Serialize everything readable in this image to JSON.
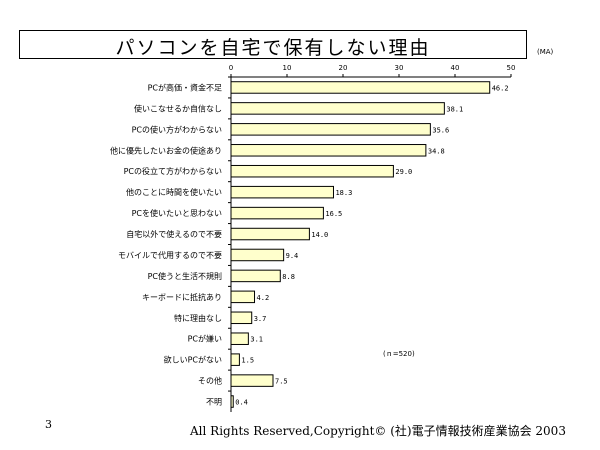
{
  "title": "パソコンを自宅で保有しない理由",
  "unit_label": "(MA)",
  "note": "(ｎ=520)",
  "page_number": "3",
  "footer": "All Rights Reserved,Copyright© (社)電子情報技術産業協会 2003",
  "colors": {
    "bar_fill": "#ffffcc",
    "bar_stroke": "#000000"
  },
  "chart_data": {
    "type": "bar",
    "orientation": "horizontal",
    "title": "パソコンを自宅で保有しない理由",
    "xlim": [
      0,
      50
    ],
    "xticks": [
      0,
      10,
      20,
      30,
      40,
      50
    ],
    "grid": false,
    "categories": [
      "PCが高価・資金不足",
      "使いこなせるか自信なし",
      "PCの使い方がわからない",
      "他に優先したいお金の使途あり",
      "PCの役立て方がわからない",
      "他のことに時間を使いたい",
      "PCを使いたいと思わない",
      "自宅以外で使えるので不要",
      "モバイルで代用するので不要",
      "PC使うと生活不規則",
      "キーボードに抵抗あり",
      "特に理由なし",
      "PCが嫌い",
      "欲しいPCがない",
      "その他",
      "不明"
    ],
    "values": [
      46.2,
      38.1,
      35.6,
      34.8,
      29.0,
      18.3,
      16.5,
      14.0,
      9.4,
      8.8,
      4.2,
      3.7,
      3.1,
      1.5,
      7.5,
      0.4
    ],
    "value_labels": [
      "46.2",
      "38.1",
      "35.6",
      "34.8",
      "29.0",
      "18.3",
      "16.5",
      "14.0",
      "9.4",
      "8.8",
      "4.2",
      "3.7",
      "3.1",
      "1.5",
      "7.5",
      "0.4"
    ]
  }
}
